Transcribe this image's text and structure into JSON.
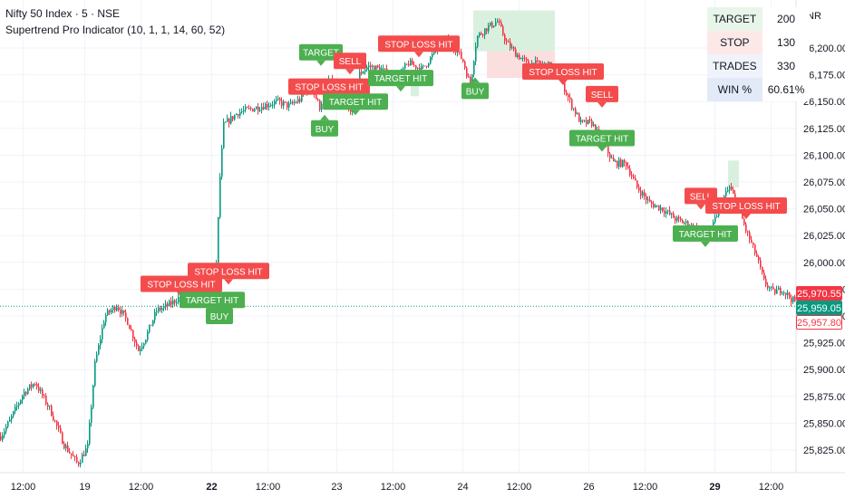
{
  "header": {
    "symbol_title": "Nifty 50 Index · 5 · NSE",
    "indicator_title": "Supertrend Pro Indicator (10, 1, 1, 14, 60, 52)"
  },
  "currency": "INR",
  "stats_table": [
    {
      "label": "TARGET",
      "value": "200",
      "color": "#e8f5e9"
    },
    {
      "label": "STOP",
      "value": "130",
      "color": "#fde8e8"
    },
    {
      "label": "TRADES",
      "value": "330",
      "color": "#f0f3fa"
    },
    {
      "label": "WIN %",
      "value": "60.61%",
      "color": "#e3eaf7"
    }
  ],
  "price_tags": [
    {
      "text": "25,970.55",
      "value": 25970.55,
      "bg": "#f23645",
      "fg": "#ffffff",
      "border": "#f23645"
    },
    {
      "text": "25,959.05",
      "value": 25959.05,
      "bg": "#089981",
      "fg": "#ffffff",
      "border": "#089981"
    },
    {
      "text": "25,957.80",
      "value": 25957.8,
      "bg": "#ffffff",
      "fg": "#f23645",
      "border": "#f23645"
    }
  ],
  "colors": {
    "up": "#089981",
    "down": "#f23645",
    "buy_label": "#4caf50",
    "sell_label": "#f44c4c",
    "target_zone": "#d6eedb",
    "stop_zone": "#fbdcdc",
    "grid": "#f0f3fa"
  },
  "chart_data": {
    "type": "candlestick",
    "ylim": [
      25810,
      26240
    ],
    "y_ticks": [
      "26,200.00",
      "26,175.00",
      "26,150.00",
      "26,125.00",
      "26,100.00",
      "26,075.00",
      "26,050.00",
      "26,025.00",
      "26,000.00",
      "25,975.00",
      "25,950.00",
      "25,925.00",
      "25,900.00",
      "25,875.00",
      "25,850.00",
      "25,825.00"
    ],
    "y_tick_values": [
      26200,
      26175,
      26150,
      26125,
      26100,
      26075,
      26050,
      26025,
      26000,
      25975,
      25950,
      25925,
      25900,
      25875,
      25850,
      25825
    ],
    "x_ticks": [
      {
        "label": "12:00",
        "bold": false,
        "idx": 25
      },
      {
        "label": "19",
        "bold": false,
        "idx": 93
      },
      {
        "label": "12:00",
        "bold": false,
        "idx": 155
      },
      {
        "label": "22",
        "bold": true,
        "idx": 233
      },
      {
        "label": "12:00",
        "bold": false,
        "idx": 295
      },
      {
        "label": "23",
        "bold": false,
        "idx": 371
      },
      {
        "label": "12:00",
        "bold": false,
        "idx": 433
      },
      {
        "label": "24",
        "bold": false,
        "idx": 510
      },
      {
        "label": "12:00",
        "bold": false,
        "idx": 572
      },
      {
        "label": "26",
        "bold": false,
        "idx": 649
      },
      {
        "label": "12:00",
        "bold": false,
        "idx": 711
      },
      {
        "label": "29",
        "bold": true,
        "idx": 788
      },
      {
        "label": "12:00",
        "bold": false,
        "idx": 850
      }
    ],
    "path_anchors": [
      [
        0,
        25838
      ],
      [
        10,
        25852
      ],
      [
        25,
        25878
      ],
      [
        38,
        25888
      ],
      [
        55,
        25862
      ],
      [
        70,
        25830
      ],
      [
        85,
        25812
      ],
      [
        96,
        25828
      ],
      [
        104,
        25905
      ],
      [
        115,
        25950
      ],
      [
        128,
        25960
      ],
      [
        140,
        25945
      ],
      [
        152,
        25918
      ],
      [
        160,
        25930
      ],
      [
        172,
        25955
      ],
      [
        185,
        25960
      ],
      [
        198,
        25968
      ],
      [
        212,
        25980
      ],
      [
        224,
        25972
      ],
      [
        234,
        25968
      ],
      [
        238,
        26000
      ],
      [
        242,
        26080
      ],
      [
        246,
        26128
      ],
      [
        262,
        26140
      ],
      [
        285,
        26145
      ],
      [
        305,
        26150
      ],
      [
        318,
        26146
      ],
      [
        330,
        26152
      ],
      [
        342,
        26165
      ],
      [
        352,
        26145
      ],
      [
        362,
        26170
      ],
      [
        372,
        26160
      ],
      [
        385,
        26140
      ],
      [
        395,
        26175
      ],
      [
        405,
        26183
      ],
      [
        420,
        26180
      ],
      [
        435,
        26170
      ],
      [
        450,
        26186
      ],
      [
        465,
        26180
      ],
      [
        478,
        26195
      ],
      [
        490,
        26208
      ],
      [
        500,
        26202
      ],
      [
        510,
        26188
      ],
      [
        518,
        26165
      ],
      [
        525,
        26210
      ],
      [
        535,
        26218
      ],
      [
        548,
        26225
      ],
      [
        558,
        26205
      ],
      [
        568,
        26195
      ],
      [
        580,
        26186
      ],
      [
        595,
        26185
      ],
      [
        608,
        26183
      ],
      [
        618,
        26170
      ],
      [
        628,
        26150
      ],
      [
        640,
        26130
      ],
      [
        652,
        26130
      ],
      [
        662,
        26115
      ],
      [
        676,
        26093
      ],
      [
        690,
        26092
      ],
      [
        702,
        26070
      ],
      [
        716,
        26055
      ],
      [
        730,
        26050
      ],
      [
        745,
        26040
      ],
      [
        760,
        26035
      ],
      [
        772,
        26028
      ],
      [
        784,
        26030
      ],
      [
        794,
        26055
      ],
      [
        804,
        26070
      ],
      [
        812,
        26055
      ],
      [
        822,
        26030
      ],
      [
        834,
        26005
      ],
      [
        842,
        25982
      ],
      [
        852,
        25972
      ],
      [
        862,
        25975
      ],
      [
        872,
        25966
      ],
      [
        878,
        25962
      ]
    ],
    "zones": [
      {
        "type": "target",
        "x1": 522,
        "x2": 612,
        "y_top": 26235,
        "y_bottom": 26197
      },
      {
        "type": "stop",
        "x1": 537,
        "x2": 612,
        "y_top": 26197,
        "y_bottom": 26172
      },
      {
        "type": "target",
        "x1": 453,
        "x2": 462,
        "y_top": 26172,
        "y_bottom": 26155
      },
      {
        "type": "target",
        "x1": 803,
        "x2": 815,
        "y_top": 26095,
        "y_bottom": 26070
      }
    ],
    "signals": [
      {
        "text": "TARGET",
        "kind": "buy",
        "x": 330,
        "y": 26196,
        "pointer": "down"
      },
      {
        "text": "SELL",
        "kind": "sell",
        "x": 368,
        "y": 26188,
        "pointer": "down"
      },
      {
        "text": "STOP LOSS HIT",
        "kind": "sell",
        "x": 318,
        "y": 26164,
        "pointer": "down"
      },
      {
        "text": "TARGET HIT",
        "kind": "buy",
        "x": 356,
        "y": 26150,
        "pointer": "down"
      },
      {
        "text": "BUY",
        "kind": "buy",
        "x": 343,
        "y": 26125,
        "pointer": "up"
      },
      {
        "text": "STOP LOSS HIT",
        "kind": "sell",
        "x": 417,
        "y": 26204,
        "pointer": "down"
      },
      {
        "text": "TARGET HIT",
        "kind": "buy",
        "x": 406,
        "y": 26172,
        "pointer": "down"
      },
      {
        "text": "BUY",
        "kind": "buy",
        "x": 509,
        "y": 26160,
        "pointer": "up"
      },
      {
        "text": "STOP LOSS HIT",
        "kind": "sell",
        "x": 576,
        "y": 26178,
        "pointer": "down"
      },
      {
        "text": "SELL",
        "kind": "sell",
        "x": 646,
        "y": 26157,
        "pointer": "down"
      },
      {
        "text": "TARGET HIT",
        "kind": "buy",
        "x": 628,
        "y": 26116,
        "pointer": "down"
      },
      {
        "text": "STOP LOSS HIT",
        "kind": "sell",
        "x": 155,
        "y": 25980,
        "pointer": "down"
      },
      {
        "text": "STOP LOSS HIT",
        "kind": "sell",
        "x": 207,
        "y": 25992,
        "pointer": "down"
      },
      {
        "text": "TARGET HIT",
        "kind": "buy",
        "x": 198,
        "y": 25965,
        "pointer": "down"
      },
      {
        "text": "BUY",
        "kind": "buy",
        "x": 227,
        "y": 25950,
        "pointer": "up"
      },
      {
        "text": "SELL",
        "kind": "sell",
        "x": 755,
        "y": 26062,
        "pointer": "down"
      },
      {
        "text": "TARGET HIT",
        "kind": "buy",
        "x": 742,
        "y": 26027,
        "pointer": "down"
      },
      {
        "text": "STOP LOSS HIT",
        "kind": "sell",
        "x": 778,
        "y": 26053,
        "pointer": "down"
      }
    ]
  }
}
